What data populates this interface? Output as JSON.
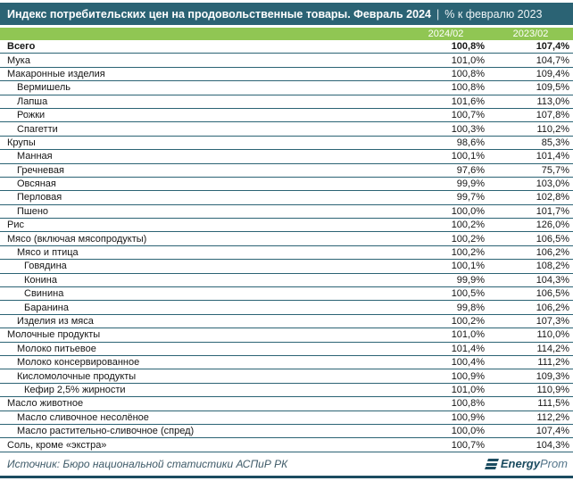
{
  "header": {
    "title_bold": "Индекс потребительских цен на продовольственные товары. Февраль 2024",
    "separator": "|",
    "title_light": "% к февралю 2023"
  },
  "chart_data": {
    "type": "table",
    "title": "Индекс потребительских цен на продовольственные товары. Февраль 2024 | % к февралю 2023",
    "columns": [
      "2024/02",
      "2023/02"
    ],
    "rows": [
      {
        "name": "Всего",
        "indent": 0,
        "bold": true,
        "values": [
          "100,8%",
          "107,4%"
        ]
      },
      {
        "name": "Мука",
        "indent": 0,
        "values": [
          "101,0%",
          "104,7%"
        ]
      },
      {
        "name": "Макаронные изделия",
        "indent": 0,
        "values": [
          "100,8%",
          "109,4%"
        ]
      },
      {
        "name": "Вермишель",
        "indent": 1,
        "values": [
          "100,8%",
          "109,5%"
        ]
      },
      {
        "name": "Лапша",
        "indent": 1,
        "values": [
          "101,6%",
          "113,0%"
        ]
      },
      {
        "name": "Рожки",
        "indent": 1,
        "values": [
          "100,7%",
          "107,8%"
        ]
      },
      {
        "name": "Спагетти",
        "indent": 1,
        "values": [
          "100,3%",
          "110,2%"
        ]
      },
      {
        "name": "Крупы",
        "indent": 0,
        "values": [
          "98,6%",
          "85,3%"
        ]
      },
      {
        "name": "Манная",
        "indent": 1,
        "values": [
          "100,1%",
          "101,4%"
        ]
      },
      {
        "name": "Гречневая",
        "indent": 1,
        "values": [
          "97,6%",
          "75,7%"
        ]
      },
      {
        "name": "Овсяная",
        "indent": 1,
        "values": [
          "99,9%",
          "103,0%"
        ]
      },
      {
        "name": "Перловая",
        "indent": 1,
        "values": [
          "99,7%",
          "102,8%"
        ]
      },
      {
        "name": "Пшено",
        "indent": 1,
        "values": [
          "100,0%",
          "101,7%"
        ]
      },
      {
        "name": "Рис",
        "indent": 0,
        "values": [
          "100,2%",
          "126,0%"
        ]
      },
      {
        "name": "Мясо (включая мясопродукты)",
        "indent": 0,
        "values": [
          "100,2%",
          "106,5%"
        ]
      },
      {
        "name": "Мясо и птица",
        "indent": 1,
        "values": [
          "100,2%",
          "106,2%"
        ]
      },
      {
        "name": "Говядина",
        "indent": 2,
        "values": [
          "100,1%",
          "108,2%"
        ]
      },
      {
        "name": "Конина",
        "indent": 2,
        "values": [
          "99,9%",
          "104,3%"
        ]
      },
      {
        "name": "Свинина",
        "indent": 2,
        "values": [
          "100,5%",
          "106,5%"
        ]
      },
      {
        "name": "Баранина",
        "indent": 2,
        "values": [
          "99,8%",
          "106,2%"
        ]
      },
      {
        "name": "Изделия из мяса",
        "indent": 1,
        "values": [
          "100,2%",
          "107,3%"
        ]
      },
      {
        "name": "Молочные продукты",
        "indent": 0,
        "values": [
          "101,0%",
          "110,0%"
        ]
      },
      {
        "name": "Молоко питьевое",
        "indent": 1,
        "values": [
          "101,4%",
          "114,2%"
        ]
      },
      {
        "name": "Молоко консервированное",
        "indent": 1,
        "values": [
          "100,4%",
          "111,2%"
        ]
      },
      {
        "name": "Кисломолочные продукты",
        "indent": 1,
        "values": [
          "100,9%",
          "109,3%"
        ]
      },
      {
        "name": "Кефир 2,5% жирности",
        "indent": 2,
        "values": [
          "101,0%",
          "110,9%"
        ]
      },
      {
        "name": "Масло животное",
        "indent": 0,
        "values": [
          "100,8%",
          "111,5%"
        ]
      },
      {
        "name": "Масло сливочное несолёное",
        "indent": 1,
        "values": [
          "100,9%",
          "112,2%"
        ]
      },
      {
        "name": "Масло растительно-сливочное (спред)",
        "indent": 1,
        "values": [
          "100,0%",
          "107,4%"
        ]
      },
      {
        "name": "Соль, кроме «экстра»",
        "indent": 0,
        "values": [
          "100,7%",
          "104,3%"
        ]
      }
    ],
    "legend_position": "none",
    "grid": "horizontal-rules"
  },
  "footer": {
    "source": "Источник: Бюро национальной статистики АСПиР РК",
    "logo_bold": "Energy",
    "logo_light": "Prom"
  },
  "colors": {
    "title_bar": "#2B6374",
    "header_green": "#90C653",
    "row_border": "#2B6374",
    "accent_dark": "#1B4C60"
  }
}
